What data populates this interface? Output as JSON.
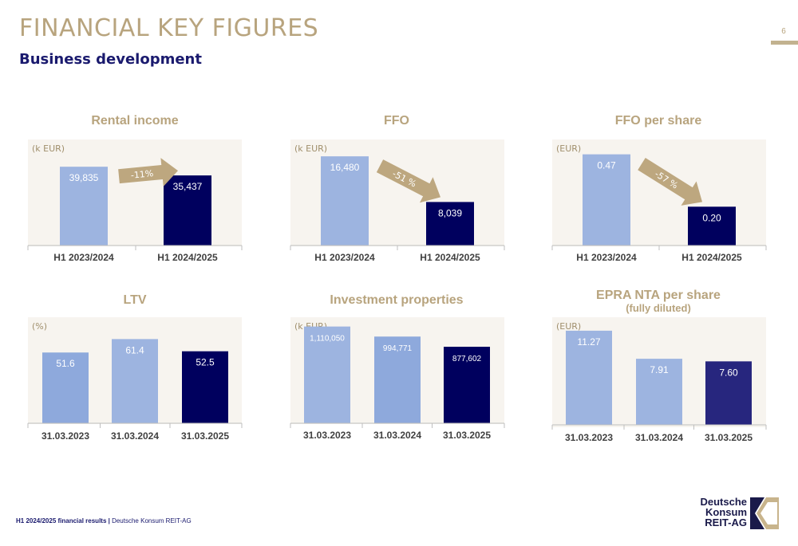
{
  "page": {
    "title": "FINANCIAL KEY FIGURES",
    "subtitle": "Business development",
    "page_number": "6",
    "footer_bold": "H1 2024/2025 financial results |",
    "footer_rest": " Deutsche Konsum REIT-AG",
    "logo_lines": [
      "Deutsche",
      "Konsum",
      "REIT-AG"
    ]
  },
  "colors": {
    "gold": "#b8a47e",
    "navy": "#00005e",
    "light_blue": "#9db4e0",
    "mid_blue": "#8ea9dc",
    "indigo": "#27267e",
    "panel_bg": "#f7f4ef",
    "arrow": "#bda77f"
  },
  "chart_data": [
    {
      "type": "bar",
      "title": "Rental income",
      "unit_label": "(k EUR)",
      "categories": [
        "H1 2023/2024",
        "H1 2024/2025"
      ],
      "values": [
        39835,
        35437
      ],
      "value_labels": [
        "39,835",
        "35,437"
      ],
      "bar_colors": [
        "#9db4e0",
        "#00005e"
      ],
      "ylim": [
        0,
        52000
      ],
      "change_label": "-11%"
    },
    {
      "type": "bar",
      "title": "FFO",
      "unit_label": "(k EUR)",
      "categories": [
        "H1 2023/2024",
        "H1 2024/2025"
      ],
      "values": [
        16480,
        8039
      ],
      "value_labels": [
        "16,480",
        "8,039"
      ],
      "bar_colors": [
        "#9db4e0",
        "#00005e"
      ],
      "ylim": [
        0,
        19000
      ],
      "change_label": "-51 %"
    },
    {
      "type": "bar",
      "title": "FFO per share",
      "unit_label": "(EUR)",
      "categories": [
        "H1 2023/2024",
        "H1 2024/2025"
      ],
      "values": [
        0.47,
        0.2
      ],
      "value_labels": [
        "0.47",
        "0.20"
      ],
      "bar_colors": [
        "#9db4e0",
        "#00005e"
      ],
      "ylim": [
        0,
        0.53
      ],
      "change_label": "-57 %"
    },
    {
      "type": "bar",
      "title": "LTV",
      "unit_label": "(%)",
      "categories": [
        "31.03.2023",
        "31.03.2024",
        "31.03.2025"
      ],
      "values": [
        51.6,
        61.4,
        52.5
      ],
      "value_labels": [
        "51.6",
        "61.4",
        "52.5"
      ],
      "bar_colors": [
        "#8ea9dc",
        "#9db4e0",
        "#00005e"
      ],
      "ylim": [
        0,
        75
      ]
    },
    {
      "type": "bar",
      "title": "Investment properties",
      "unit_label": "(k EUR)",
      "categories": [
        "31.03.2023",
        "31.03.2024",
        "31.03.2025"
      ],
      "values": [
        1110050,
        994771,
        877602
      ],
      "value_labels": [
        "1,110,050",
        "994,771",
        "877,602"
      ],
      "bar_colors": [
        "#9db4e0",
        "#8ea9dc",
        "#00005e"
      ],
      "ylim": [
        0,
        1180000
      ]
    },
    {
      "type": "bar",
      "title": "EPRA NTA per share",
      "subtitle": "(fully diluted)",
      "unit_label": "(EUR)",
      "categories": [
        "31.03.2023",
        "31.03.2024",
        "31.03.2025"
      ],
      "values": [
        11.27,
        7.91,
        7.6
      ],
      "value_labels": [
        "11.27",
        "7.91",
        "7.60"
      ],
      "bar_colors": [
        "#9db4e0",
        "#9db4e0",
        "#27267e"
      ],
      "ylim": [
        0,
        12.5
      ]
    }
  ]
}
